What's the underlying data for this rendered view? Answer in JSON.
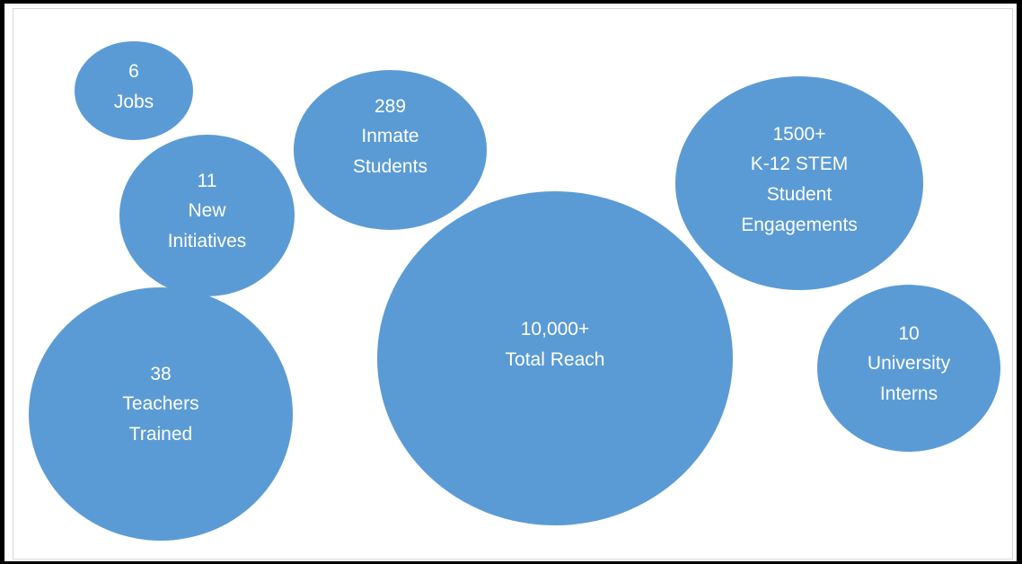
{
  "bubbles": {
    "jobs": {
      "lines": [
        "6",
        "Jobs"
      ]
    },
    "inmate": {
      "lines": [
        "289",
        "Inmate",
        "Students"
      ]
    },
    "initiatives": {
      "lines": [
        "11",
        "New",
        "Initiatives"
      ]
    },
    "stem": {
      "lines": [
        "1500+",
        "K-12 STEM",
        "Student",
        "Engagements"
      ]
    },
    "reach": {
      "lines": [
        "10,000+",
        "Total Reach"
      ]
    },
    "interns": {
      "lines": [
        "10",
        "University",
        "Interns"
      ]
    },
    "teachers": {
      "lines": [
        "38",
        "Teachers",
        "Trained"
      ]
    }
  },
  "colors": {
    "bubble_fill": "#5b9bd5",
    "bubble_text": "#ffffff",
    "frame": "#000000"
  }
}
